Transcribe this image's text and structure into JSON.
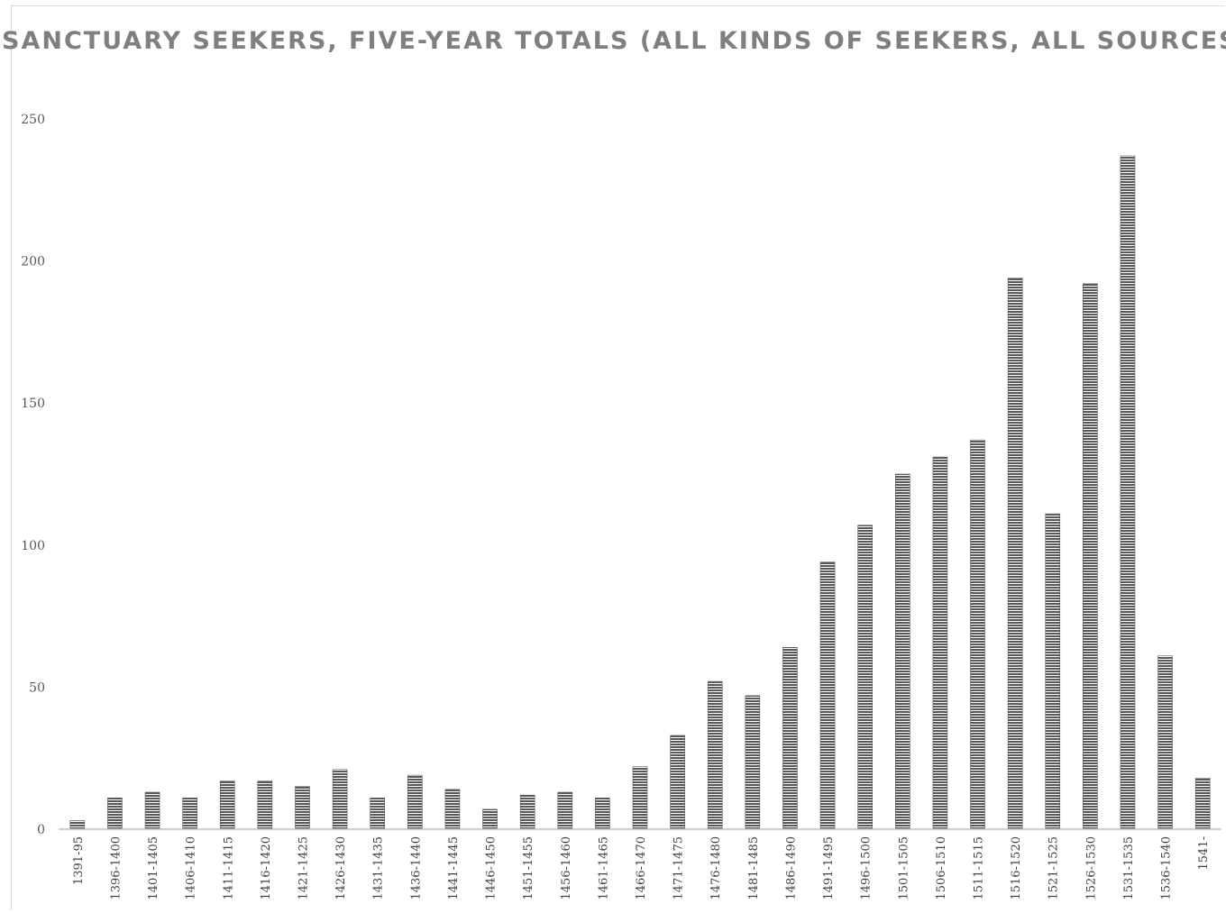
{
  "chart_data": {
    "type": "bar",
    "title": "SANCTUARY SEEKERS, FIVE-YEAR TOTALS (ALL KINDS OF SEEKERS, ALL SOURCES)",
    "xlabel": "",
    "ylabel": "",
    "ylim": [
      0,
      250
    ],
    "yticks": [
      "0",
      "50",
      "100",
      "150",
      "200",
      "250"
    ],
    "grid": false,
    "legend": "none",
    "bar_color": "#595959",
    "categories": [
      "1391-95",
      "1396-1400",
      "1401-1405",
      "1406-1410",
      "1411-1415",
      "1416-1420",
      "1421-1425",
      "1426-1430",
      "1431-1435",
      "1436-1440",
      "1441-1445",
      "1446-1450",
      "1451-1455",
      "1456-1460",
      "1461-1465",
      "1466-1470",
      "1471-1475",
      "1476-1480",
      "1481-1485",
      "1486-1490",
      "1491-1495",
      "1496-1500",
      "1501-1505",
      "1506-1510",
      "1511-1515",
      "1516-1520",
      "1521-1525",
      "1526-1530",
      "1531-1535",
      "1536-1540",
      "1541-"
    ],
    "values": [
      3,
      11,
      13,
      11,
      17,
      17,
      15,
      21,
      11,
      19,
      14,
      7,
      12,
      13,
      11,
      22,
      33,
      52,
      47,
      64,
      94,
      107,
      125,
      131,
      137,
      194,
      111,
      192,
      237,
      61,
      18
    ]
  }
}
